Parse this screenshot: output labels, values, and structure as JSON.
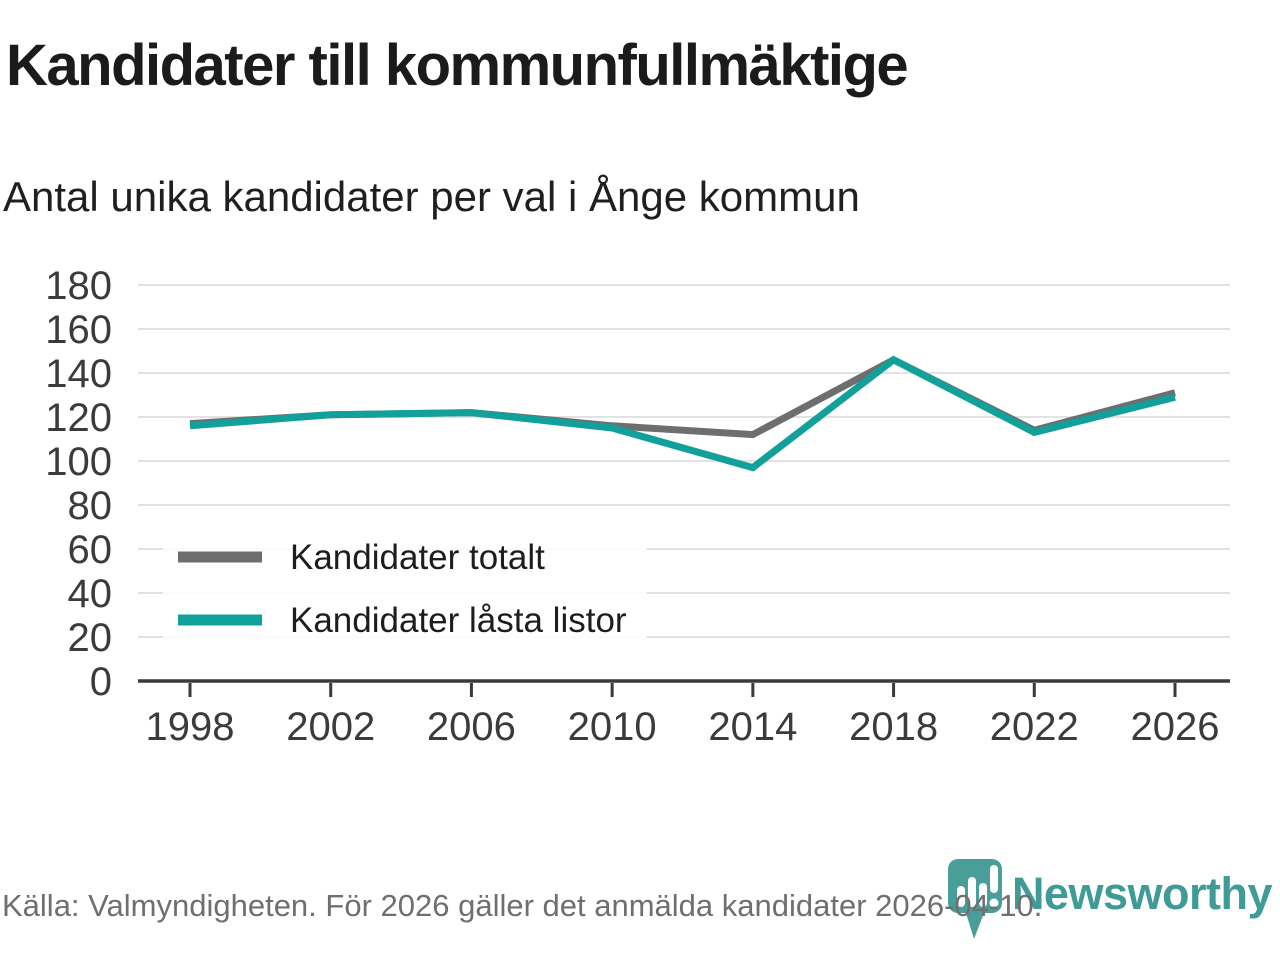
{
  "chart_data": {
    "type": "line",
    "title": "Kandidater till kommunfullmäktige",
    "subtitle": "Antal unika kandidater per val i Ånge kommun",
    "categories": [
      "1998",
      "2002",
      "2006",
      "2010",
      "2014",
      "2018",
      "2022",
      "2026"
    ],
    "series": [
      {
        "name": "Kandidater totalt",
        "color": "#6e6e6e",
        "values": [
          117,
          121,
          122,
          116,
          112,
          146,
          114,
          131
        ]
      },
      {
        "name": "Kandidater låsta listor",
        "color": "#12a19a",
        "values": [
          116,
          121,
          122,
          115,
          97,
          146,
          113,
          129
        ]
      }
    ],
    "ylim": [
      0,
      180
    ],
    "y_ticks": [
      0,
      20,
      40,
      60,
      80,
      100,
      120,
      140,
      160,
      180
    ],
    "grid": true,
    "legend_position": "inside-bottom-left",
    "colors": {
      "axis": "#3a3a3a",
      "grid": "#e2e2e2",
      "tick_label": "#3b3b3b",
      "legend_label": "#1d1d1d"
    }
  },
  "footer": {
    "source_text": "Källa: Valmyndigheten. För 2026 gäller det anmälda kandidater 2026-04-10.",
    "brand": "Newsworthy",
    "brand_color": "#3f9b96",
    "brand_icon_color": "#4a9e99"
  }
}
